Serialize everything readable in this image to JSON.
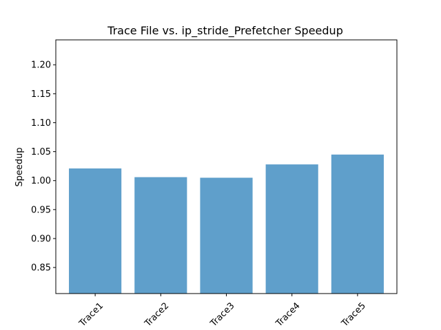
{
  "chart_data": {
    "type": "bar",
    "title": "Trace File vs. ip_stride_Prefetcher Speedup",
    "xlabel": "",
    "ylabel": "Speedup",
    "categories": [
      "Trace1",
      "Trace2",
      "Trace3",
      "Trace4",
      "Trace5"
    ],
    "values": [
      1.021,
      1.006,
      1.005,
      1.028,
      1.045
    ],
    "ylim": [
      0.805,
      1.243
    ],
    "yticks": [
      0.85,
      0.9,
      0.95,
      1.0,
      1.05,
      1.1,
      1.15,
      1.2
    ],
    "ytick_labels": [
      "0.85",
      "0.90",
      "0.95",
      "1.00",
      "1.05",
      "1.10",
      "1.15",
      "1.20"
    ],
    "bar_color": "#5f9fcb",
    "grid": false,
    "legend": "none"
  }
}
